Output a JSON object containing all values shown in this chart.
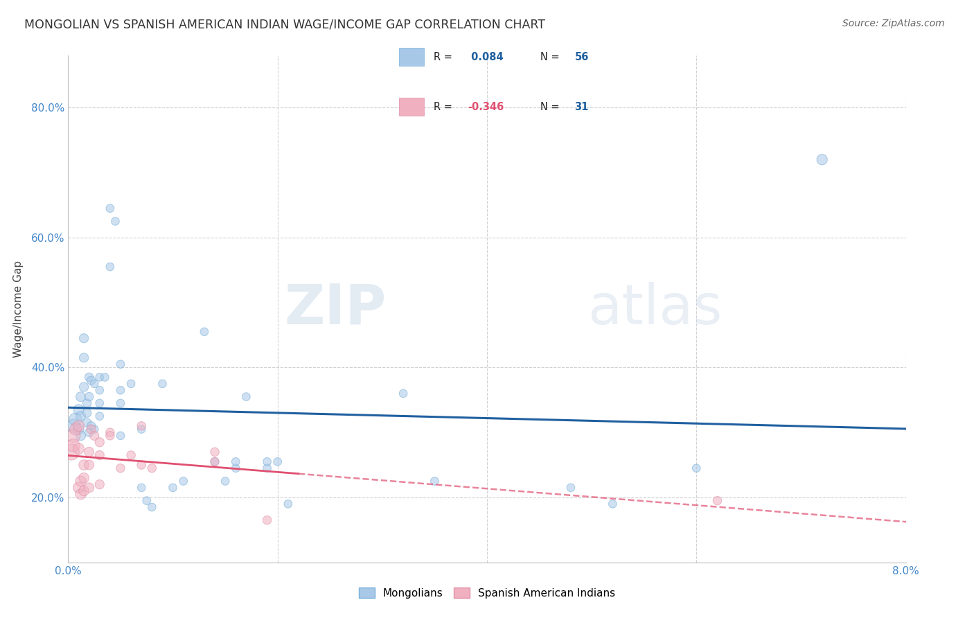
{
  "title": "MONGOLIAN VS SPANISH AMERICAN INDIAN WAGE/INCOME GAP CORRELATION CHART",
  "source": "Source: ZipAtlas.com",
  "ylabel": "Wage/Income Gap",
  "xlim": [
    0.0,
    0.08
  ],
  "ylim": [
    0.1,
    0.88
  ],
  "yticks": [
    0.2,
    0.4,
    0.6,
    0.8
  ],
  "ytick_labels": [
    "20.0%",
    "40.0%",
    "60.0%",
    "80.0%"
  ],
  "xticks": [
    0.0,
    0.02,
    0.04,
    0.06,
    0.08
  ],
  "xtick_labels": [
    "0.0%",
    "",
    "",
    "",
    "8.0%"
  ],
  "mongolian_R": 0.084,
  "mongolian_N": 56,
  "spanish_R": -0.346,
  "spanish_N": 31,
  "blue_color": "#a8c8e8",
  "blue_edge_color": "#7ab0d8",
  "blue_line_color": "#2060a0",
  "pink_color": "#f0b0c0",
  "pink_edge_color": "#e090a8",
  "pink_line_color": "#e05070",
  "background_color": "#ffffff",
  "grid_color": "#cccccc",
  "watermark_zip": "ZIP",
  "watermark_atlas": "atlas",
  "mongolian_points": [
    [
      0.0005,
      0.31
    ],
    [
      0.0007,
      0.32
    ],
    [
      0.001,
      0.335
    ],
    [
      0.001,
      0.305
    ],
    [
      0.0012,
      0.355
    ],
    [
      0.0012,
      0.325
    ],
    [
      0.0012,
      0.295
    ],
    [
      0.0015,
      0.415
    ],
    [
      0.0015,
      0.445
    ],
    [
      0.0015,
      0.37
    ],
    [
      0.0018,
      0.315
    ],
    [
      0.0018,
      0.345
    ],
    [
      0.0018,
      0.33
    ],
    [
      0.002,
      0.3
    ],
    [
      0.002,
      0.385
    ],
    [
      0.002,
      0.355
    ],
    [
      0.0022,
      0.38
    ],
    [
      0.0022,
      0.31
    ],
    [
      0.0025,
      0.375
    ],
    [
      0.0025,
      0.305
    ],
    [
      0.003,
      0.365
    ],
    [
      0.003,
      0.385
    ],
    [
      0.003,
      0.325
    ],
    [
      0.003,
      0.345
    ],
    [
      0.0035,
      0.385
    ],
    [
      0.004,
      0.555
    ],
    [
      0.004,
      0.645
    ],
    [
      0.0045,
      0.625
    ],
    [
      0.005,
      0.405
    ],
    [
      0.005,
      0.295
    ],
    [
      0.005,
      0.365
    ],
    [
      0.005,
      0.345
    ],
    [
      0.006,
      0.375
    ],
    [
      0.007,
      0.305
    ],
    [
      0.007,
      0.215
    ],
    [
      0.0075,
      0.195
    ],
    [
      0.008,
      0.185
    ],
    [
      0.009,
      0.375
    ],
    [
      0.01,
      0.215
    ],
    [
      0.011,
      0.225
    ],
    [
      0.013,
      0.455
    ],
    [
      0.014,
      0.255
    ],
    [
      0.015,
      0.225
    ],
    [
      0.016,
      0.245
    ],
    [
      0.016,
      0.255
    ],
    [
      0.017,
      0.355
    ],
    [
      0.019,
      0.245
    ],
    [
      0.019,
      0.255
    ],
    [
      0.02,
      0.255
    ],
    [
      0.021,
      0.19
    ],
    [
      0.032,
      0.36
    ],
    [
      0.035,
      0.225
    ],
    [
      0.048,
      0.215
    ],
    [
      0.052,
      0.19
    ],
    [
      0.06,
      0.245
    ],
    [
      0.072,
      0.72
    ]
  ],
  "mongolian_sizes": [
    200,
    180,
    120,
    120,
    100,
    100,
    100,
    90,
    90,
    90,
    80,
    80,
    80,
    80,
    80,
    80,
    80,
    80,
    70,
    70,
    70,
    70,
    70,
    70,
    70,
    70,
    70,
    70,
    70,
    70,
    70,
    70,
    70,
    70,
    70,
    70,
    70,
    70,
    70,
    70,
    70,
    70,
    70,
    70,
    70,
    70,
    70,
    70,
    70,
    70,
    70,
    70,
    70,
    70,
    70,
    120
  ],
  "spanish_points": [
    [
      0.0003,
      0.27
    ],
    [
      0.0005,
      0.295
    ],
    [
      0.0005,
      0.28
    ],
    [
      0.0007,
      0.305
    ],
    [
      0.001,
      0.31
    ],
    [
      0.001,
      0.275
    ],
    [
      0.001,
      0.215
    ],
    [
      0.0012,
      0.205
    ],
    [
      0.0012,
      0.225
    ],
    [
      0.0015,
      0.25
    ],
    [
      0.0015,
      0.21
    ],
    [
      0.0015,
      0.23
    ],
    [
      0.002,
      0.25
    ],
    [
      0.002,
      0.27
    ],
    [
      0.002,
      0.215
    ],
    [
      0.0022,
      0.305
    ],
    [
      0.0025,
      0.295
    ],
    [
      0.003,
      0.265
    ],
    [
      0.003,
      0.285
    ],
    [
      0.003,
      0.22
    ],
    [
      0.004,
      0.3
    ],
    [
      0.004,
      0.295
    ],
    [
      0.005,
      0.245
    ],
    [
      0.006,
      0.265
    ],
    [
      0.007,
      0.31
    ],
    [
      0.007,
      0.25
    ],
    [
      0.008,
      0.245
    ],
    [
      0.014,
      0.255
    ],
    [
      0.014,
      0.27
    ],
    [
      0.019,
      0.165
    ],
    [
      0.062,
      0.195
    ]
  ],
  "spanish_sizes": [
    280,
    200,
    180,
    150,
    130,
    130,
    130,
    120,
    120,
    110,
    110,
    110,
    100,
    100,
    100,
    90,
    90,
    90,
    90,
    90,
    80,
    80,
    80,
    80,
    80,
    80,
    80,
    80,
    80,
    80,
    80
  ]
}
